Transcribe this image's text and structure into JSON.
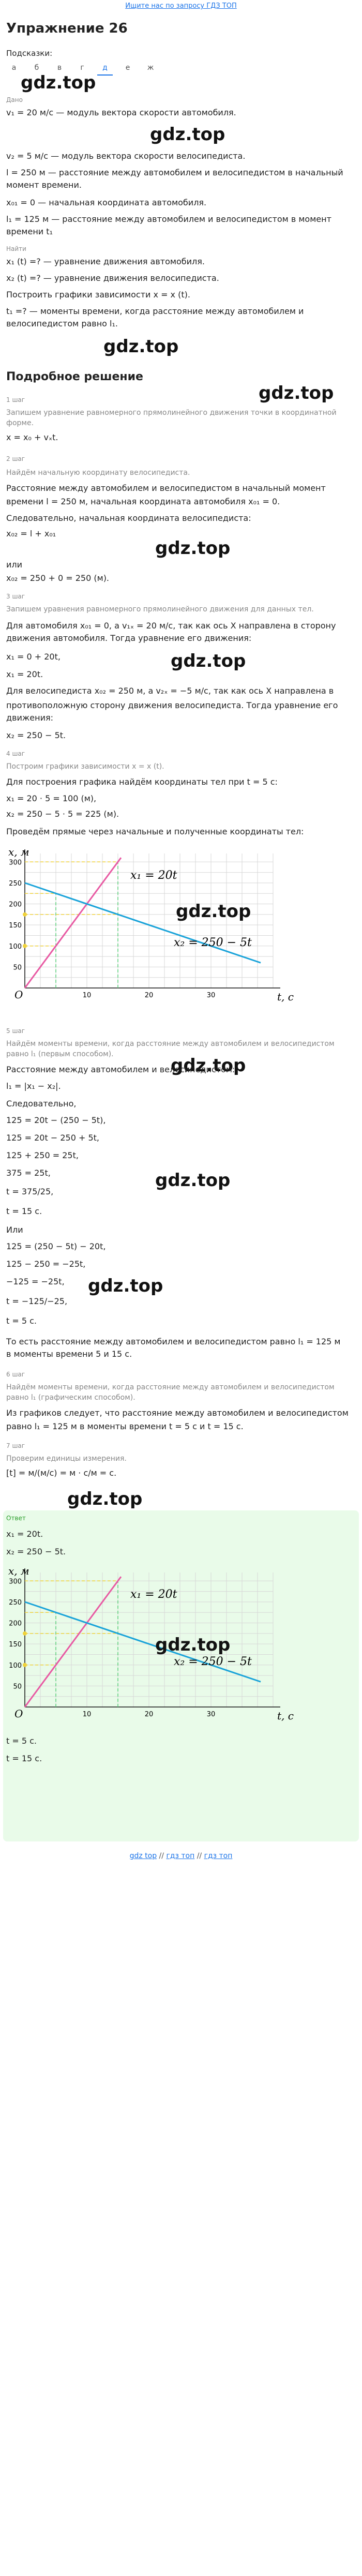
{
  "header": {
    "link": "Ищите нас по запросу ГДЗ ТОП"
  },
  "title": "Упражнение 26",
  "subtitle": "Подсказки:",
  "hints": [
    "а",
    "б",
    "в",
    "г",
    "д",
    "е",
    "ж"
  ],
  "watermark": "gdz.top",
  "sections": {
    "dano_label": "Дано",
    "dano_lines": [
      "v₁ = 20 м/с — модуль вектора скорости автомобиля.",
      "v₂ = 5 м/с — модуль вектора скорости велосипедиста.",
      "l = 250 м — расстояние между автомобилем и велосипедистом в начальный",
      "момент времени.",
      "x₀₁ = 0 — начальная координата автомобиля.",
      "l₁ = 125 м — расстояние между автомобилем и велосипедистом в момент",
      "времени t₁"
    ],
    "find_label": "Найти",
    "find_lines": [
      "x₁ (t) =? — уравнение движения автомобиля.",
      "x₂ (t) =? — уравнение движения велосипедиста.",
      "Построить графики зависимости x = x (t).",
      "t₁ =? — моменты времени, когда расстояние между автомобилем и",
      "велосипедистом равно l₁."
    ],
    "solution_title": "Подробное решение",
    "step1_label": "1 шаг",
    "step1_lines": [
      "Запишем уравнение равномерного прямолинейного движения точки в координатной",
      "форме.",
      "x = x₀ + vₓt."
    ],
    "step2_label": "2 шаг",
    "step2_lines": [
      "Найдём начальную координату велосипедиста.",
      "Расстояние между автомобилем и велосипедистом в начальный момент",
      "времени l = 250 м, начальная координата автомобиля x₀₁ = 0.",
      "Следовательно, начальная координата велосипедиста:",
      "x₀₂ = l + x₀₁",
      "или",
      "x₀₂ = 250 + 0 = 250 (м)."
    ],
    "step3_label": "3 шаг",
    "step3_lines": [
      "Запишем уравнения равномерного прямолинейного движения для данных тел.",
      "Для автомобиля x₀₁ = 0, а v₁ₓ = 20 м/с, так как ось X направлена в сторону",
      "движения автомобиля. Тогда уравнение его движения:",
      "x₁ = 0 + 20t,",
      "x₁ = 20t.",
      "Для велосипедиста x₀₂ = 250 м, а v₂ₓ = −5 м/с, так как ось X направлена в",
      "противоположную сторону движения велосипедиста. Тогда уравнение его",
      "движения:",
      "x₂ = 250 − 5t."
    ],
    "step4_label": "4 шаг",
    "step4_lines": [
      "Построим графики зависимости x = x (t).",
      "Для построения графика найдём координаты тел при t = 5 с:",
      "x₁ = 20 · 5 = 100 (м),",
      "x₂ = 250 − 5 · 5 = 225 (м).",
      "Проведём прямые через начальные и полученные координаты тел:"
    ],
    "step5_label": "5 шаг",
    "step5_lines": [
      "Найдём моменты времени, когда расстояние между автомобилем и велосипедистом",
      "равно l₁ (первым способом).",
      "Расстояние между автомобилем и велосипедистом:",
      "l₁ = |x₁ − x₂|.",
      "Следовательно,",
      "125 = 20t − (250 − 5t),",
      "125 = 20t − 250 + 5t,",
      "125 + 250 = 25t,",
      "375 = 25t,",
      "t = 375/25,",
      "t = 15 с.",
      "Или",
      "125 = (250 − 5t) − 20t,",
      "125 − 250 = −25t,",
      "−125 = −25t,",
      "t = −125/−25,",
      "t = 5 с.",
      "То есть расстояние между автомобилем и велосипедистом равно l₁ = 125 м",
      "в моменты времени 5 и 15 с."
    ],
    "step6_label": "6 шаг",
    "step6_lines": [
      "Найдём моменты времени, когда расстояние между автомобилем и велосипедистом",
      "равно l₁ (графическим способом).",
      "Из графиков следует, что расстояние между автомобилем и велосипедистом",
      "равно l₁ = 125 м в моменты времени t = 5 с и t = 15 с."
    ],
    "step7_label": "7 шаг",
    "step7_lines": [
      "Проверим единицы измерения.",
      "[t] = м/(м/с) = м · с/м = с."
    ],
    "answer_label": "Ответ",
    "answer_top_lines": [
      "x₁ = 20t.",
      "x₂ = 250 − 5t."
    ],
    "answer_bottom_lines": [
      "t = 5 с.",
      "t = 15 с."
    ]
  },
  "graph": {
    "ylabel": "x, м",
    "xlabel": "t, с",
    "origin": "O",
    "line1_label": "x₁ = 20t",
    "line2_label": "x₂ = 250 − 5t",
    "y_ticks": [
      "300",
      "250",
      "200",
      "150",
      "100",
      "50"
    ],
    "x_ticks": [
      "10",
      "20",
      "30"
    ]
  },
  "footer": {
    "a": "gdz top",
    "b": "гдз топ",
    "c": "гдз топ",
    "sep": "//"
  },
  "chart_data": {
    "type": "line",
    "xlabel": "t, с",
    "ylabel": "x, м",
    "xlim": [
      0,
      40
    ],
    "ylim": [
      0,
      320
    ],
    "grid": true,
    "series": [
      {
        "name": "x₁ = 20t",
        "x": [
          0,
          15.5
        ],
        "y": [
          0,
          310
        ],
        "color": "#e85aa3"
      },
      {
        "name": "x₂ = 250 − 5t",
        "x": [
          0,
          38
        ],
        "y": [
          250,
          60
        ],
        "color": "#1aa3d9"
      }
    ],
    "guides": [
      {
        "t": 5,
        "x": [
          100,
          225
        ]
      },
      {
        "t": 15,
        "x": [
          175,
          300
        ]
      }
    ]
  }
}
